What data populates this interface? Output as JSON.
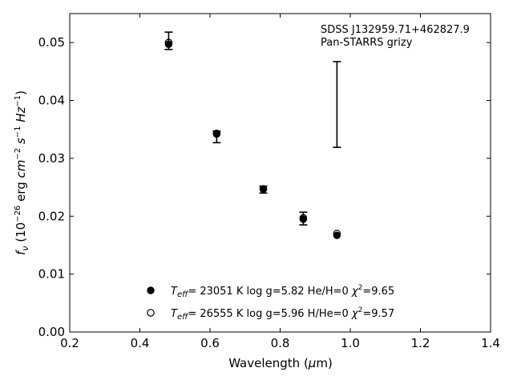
{
  "chart_data": {
    "type": "scatter",
    "xlabel_main": "Wavelength (",
    "xlabel_mu": "μ",
    "xlabel_unit": "m)",
    "ylabel_f": "f",
    "ylabel_nu": "ν",
    "ylabel_open": " (10",
    "ylabel_exp1": "−26",
    "ylabel_erg": " erg ",
    "ylabel_cm": "cm",
    "ylabel_exp2": "−2",
    "ylabel_s": " s",
    "ylabel_exp3": "−1",
    "ylabel_hz": " Hz",
    "ylabel_exp4": "−1",
    "ylabel_close": ")",
    "xlim": [
      0.2,
      1.4
    ],
    "ylim": [
      0.0,
      0.055
    ],
    "x_ticks": [
      0.2,
      0.4,
      0.6,
      0.8,
      1.0,
      1.2,
      1.4
    ],
    "x_tick_labels": [
      "0.2",
      "0.4",
      "0.6",
      "0.8",
      "1.0",
      "1.2",
      "1.4"
    ],
    "y_ticks": [
      0.0,
      0.01,
      0.02,
      0.03,
      0.04,
      0.05
    ],
    "y_tick_labels": [
      "0.00",
      "0.01",
      "0.02",
      "0.03",
      "0.04",
      "0.05"
    ],
    "annotation_line1": "SDSS J132959.71+462827.9",
    "annotation_line2": "Pan-STARRS grizy",
    "observed": [
      {
        "x": 0.482,
        "y": 0.0503,
        "err_lo": 0.0015,
        "err_hi": 0.0015
      },
      {
        "x": 0.619,
        "y": 0.0337,
        "err_lo": 0.001,
        "err_hi": 0.001
      },
      {
        "x": 0.752,
        "y": 0.0246,
        "err_lo": 0.0006,
        "err_hi": 0.0006
      },
      {
        "x": 0.866,
        "y": 0.0196,
        "err_lo": 0.0011,
        "err_hi": 0.0011
      },
      {
        "x": 0.962,
        "y": 0.0393,
        "err_lo": 0.0074,
        "err_hi": 0.0074
      }
    ],
    "series": [
      {
        "marker": "filled",
        "legend_teff_sym": "T",
        "legend_teff_sub": "eff",
        "legend_text": "= 23051 K  log g=5.82  He/H=0  ",
        "legend_chi": "χ",
        "legend_chi_exp": "2",
        "legend_chi_val": "=9.65",
        "x": [
          0.482,
          0.619,
          0.752,
          0.866,
          0.962
        ],
        "values": [
          0.0497,
          0.0342,
          0.0247,
          0.0195,
          0.0167
        ]
      },
      {
        "marker": "open",
        "legend_teff_sym": "T",
        "legend_teff_sub": "eff",
        "legend_text": "= 26555 K  log g=5.96  H/He=0  ",
        "legend_chi": "χ",
        "legend_chi_exp": "2",
        "legend_chi_val": "=9.57",
        "x": [
          0.482,
          0.619,
          0.752,
          0.866,
          0.962
        ],
        "values": [
          0.05,
          0.0343,
          0.0247,
          0.0197,
          0.017
        ]
      }
    ],
    "legend_placement": "lower-center",
    "grid": false
  }
}
